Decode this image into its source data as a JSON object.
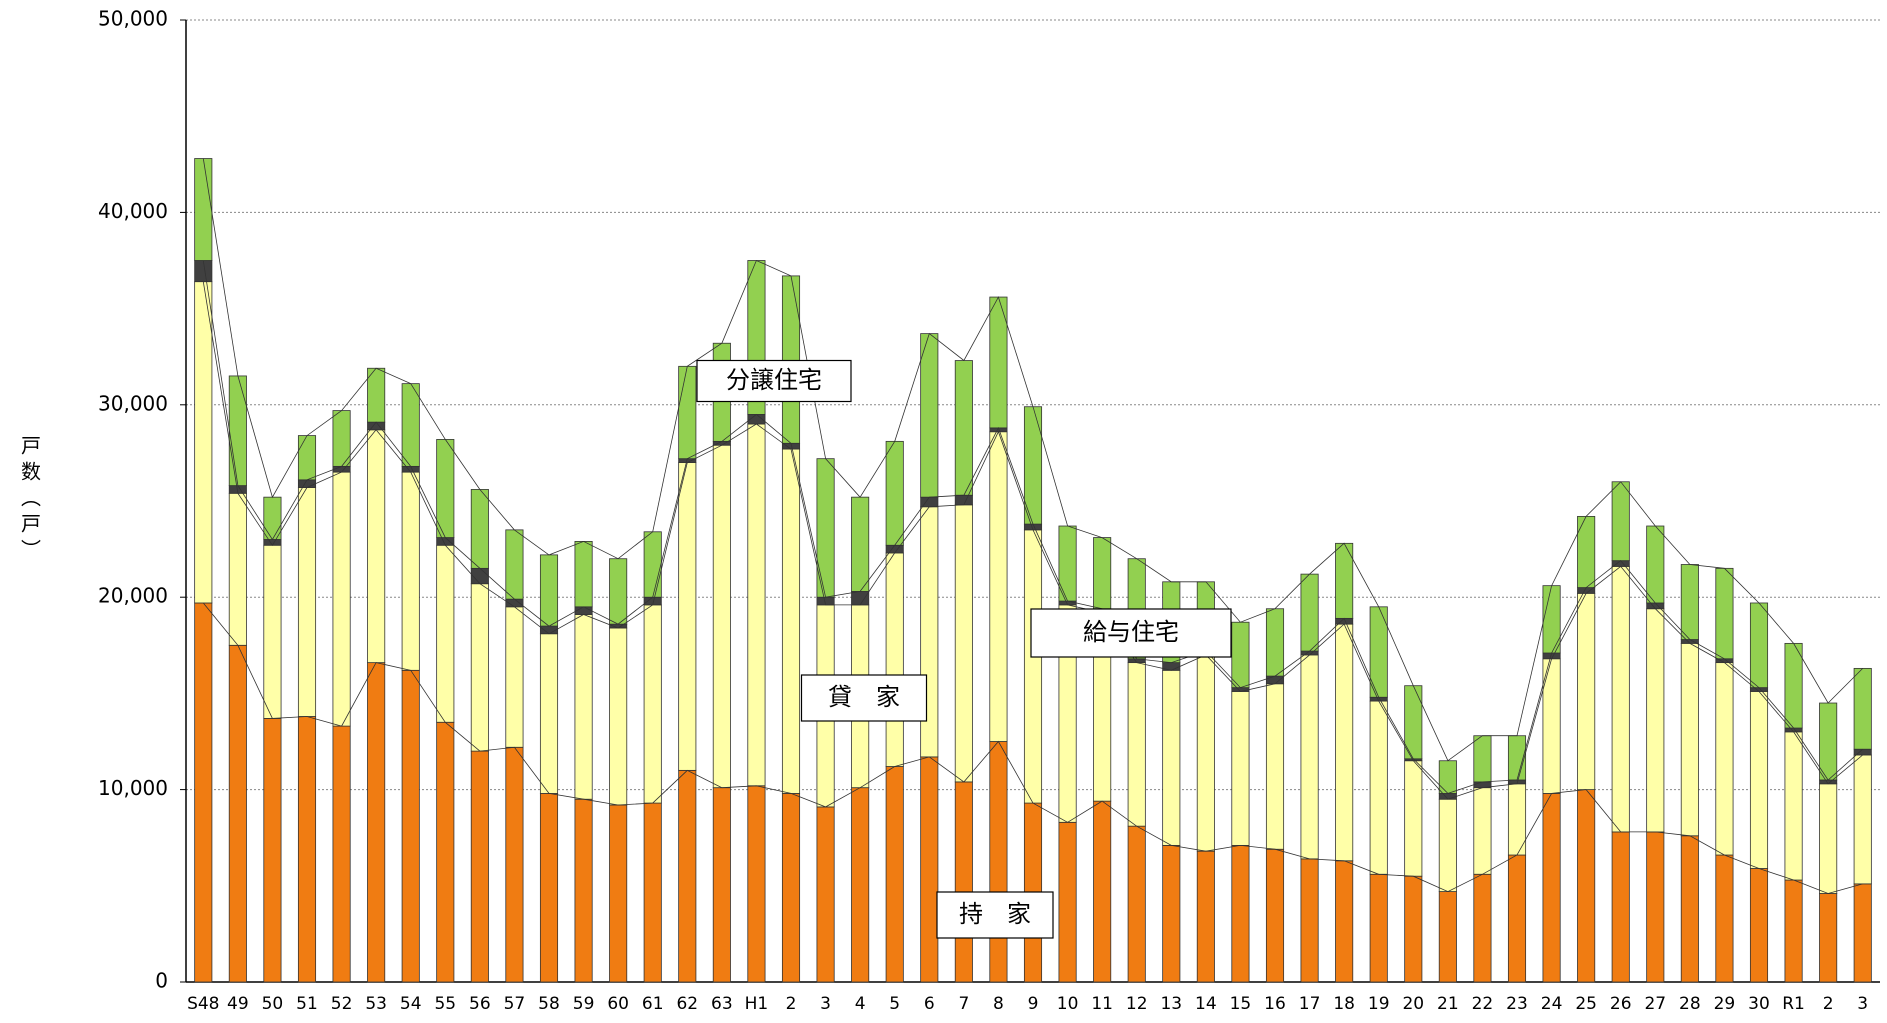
{
  "chart_data": {
    "type": "stacked_bar",
    "y_label": "戸数（戸）",
    "categories": [
      "S48",
      "49",
      "50",
      "51",
      "52",
      "53",
      "54",
      "55",
      "56",
      "57",
      "58",
      "59",
      "60",
      "61",
      "62",
      "63",
      "H1",
      "2",
      "3",
      "4",
      "5",
      "6",
      "7",
      "8",
      "9",
      "10",
      "11",
      "12",
      "13",
      "14",
      "15",
      "16",
      "17",
      "18",
      "19",
      "20",
      "21",
      "22",
      "23",
      "24",
      "25",
      "26",
      "27",
      "28",
      "29",
      "30",
      "R1",
      "2",
      "3"
    ],
    "ylim": [
      0,
      50000
    ],
    "yticks": [
      0,
      {
        "value": 10000,
        "label": "10,000"
      },
      {
        "value": 20000,
        "label": "20,000"
      },
      {
        "value": 30000,
        "label": "30,000"
      },
      {
        "value": 40000,
        "label": "40,000"
      },
      {
        "value": 50000,
        "label": "50,000"
      }
    ],
    "grid": true,
    "series": [
      {
        "name": "持　家",
        "color": "#f07c12",
        "values": [
          19700,
          17500,
          13700,
          13800,
          13300,
          16600,
          16200,
          13500,
          12000,
          12200,
          9800,
          9500,
          9200,
          9300,
          11000,
          10100,
          10200,
          9800,
          9100,
          10100,
          11200,
          11700,
          10400,
          12500,
          9300,
          8300,
          9400,
          8100,
          7100,
          6800,
          7100,
          6900,
          6400,
          6300,
          5600,
          5500,
          4700,
          5600,
          6600,
          9800,
          10000,
          7800,
          7800,
          7600,
          6600,
          5900,
          5300,
          4600,
          5100
        ]
      },
      {
        "name": "貸　家",
        "color": "#ffffa8",
        "values": [
          16700,
          7900,
          9000,
          11900,
          13200,
          12100,
          10300,
          9200,
          8700,
          7300,
          8300,
          9600,
          9200,
          10300,
          16000,
          17800,
          18800,
          17900,
          10500,
          9500,
          11100,
          13000,
          14400,
          16100,
          14200,
          11300,
          9800,
          8500,
          9100,
          10200,
          8000,
          8600,
          10600,
          12300,
          9000,
          6000,
          4800,
          4500,
          3700,
          7000,
          10200,
          13800,
          11600,
          10000,
          10000,
          9200,
          7700,
          5700,
          6700
        ]
      },
      {
        "name": "給与住宅",
        "color": "#404040",
        "values": [
          1100,
          400,
          300,
          400,
          300,
          400,
          300,
          400,
          800,
          400,
          400,
          400,
          200,
          400,
          200,
          200,
          500,
          300,
          400,
          700,
          400,
          500,
          500,
          200,
          300,
          200,
          200,
          200,
          400,
          200,
          200,
          400,
          200,
          300,
          200,
          100,
          300,
          300,
          200,
          300,
          300,
          300,
          300,
          200,
          200,
          200,
          200,
          200,
          300
        ]
      },
      {
        "name": "分譲住宅",
        "color": "#92d050",
        "values": [
          5300,
          5700,
          2200,
          2300,
          2900,
          2800,
          4300,
          5100,
          4100,
          3600,
          3700,
          3400,
          3400,
          3400,
          4800,
          5100,
          8000,
          8700,
          7200,
          4900,
          5400,
          8500,
          7000,
          6800,
          6100,
          3900,
          3700,
          5200,
          4200,
          3600,
          3400,
          3500,
          4000,
          3900,
          4700,
          3800,
          1700,
          2400,
          2300,
          3500,
          3700,
          4100,
          4000,
          3900,
          4700,
          4400,
          4400,
          4000,
          4200
        ]
      }
    ]
  }
}
